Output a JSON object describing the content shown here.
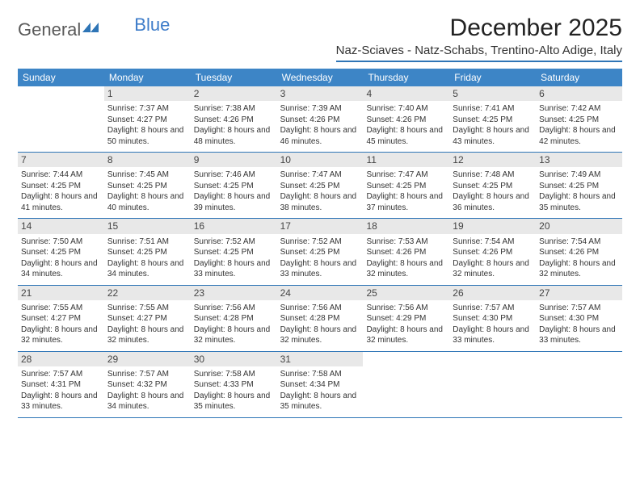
{
  "logo": {
    "text1": "General",
    "text2": "Blue"
  },
  "title": "December 2025",
  "location": "Naz-Sciaves - Natz-Schabs, Trentino-Alto Adige, Italy",
  "colors": {
    "header_bar": "#3d85c6",
    "divider": "#2e75b6",
    "daynum_bg": "#e8e8e8",
    "logo_blue": "#3d7cc9"
  },
  "weekdays": [
    "Sunday",
    "Monday",
    "Tuesday",
    "Wednesday",
    "Thursday",
    "Friday",
    "Saturday"
  ],
  "weeks": [
    [
      {
        "n": "",
        "empty": true
      },
      {
        "n": "1",
        "sr": "7:37 AM",
        "ss": "4:27 PM",
        "dl": "8 hours and 50 minutes."
      },
      {
        "n": "2",
        "sr": "7:38 AM",
        "ss": "4:26 PM",
        "dl": "8 hours and 48 minutes."
      },
      {
        "n": "3",
        "sr": "7:39 AM",
        "ss": "4:26 PM",
        "dl": "8 hours and 46 minutes."
      },
      {
        "n": "4",
        "sr": "7:40 AM",
        "ss": "4:26 PM",
        "dl": "8 hours and 45 minutes."
      },
      {
        "n": "5",
        "sr": "7:41 AM",
        "ss": "4:25 PM",
        "dl": "8 hours and 43 minutes."
      },
      {
        "n": "6",
        "sr": "7:42 AM",
        "ss": "4:25 PM",
        "dl": "8 hours and 42 minutes."
      }
    ],
    [
      {
        "n": "7",
        "sr": "7:44 AM",
        "ss": "4:25 PM",
        "dl": "8 hours and 41 minutes."
      },
      {
        "n": "8",
        "sr": "7:45 AM",
        "ss": "4:25 PM",
        "dl": "8 hours and 40 minutes."
      },
      {
        "n": "9",
        "sr": "7:46 AM",
        "ss": "4:25 PM",
        "dl": "8 hours and 39 minutes."
      },
      {
        "n": "10",
        "sr": "7:47 AM",
        "ss": "4:25 PM",
        "dl": "8 hours and 38 minutes."
      },
      {
        "n": "11",
        "sr": "7:47 AM",
        "ss": "4:25 PM",
        "dl": "8 hours and 37 minutes."
      },
      {
        "n": "12",
        "sr": "7:48 AM",
        "ss": "4:25 PM",
        "dl": "8 hours and 36 minutes."
      },
      {
        "n": "13",
        "sr": "7:49 AM",
        "ss": "4:25 PM",
        "dl": "8 hours and 35 minutes."
      }
    ],
    [
      {
        "n": "14",
        "sr": "7:50 AM",
        "ss": "4:25 PM",
        "dl": "8 hours and 34 minutes."
      },
      {
        "n": "15",
        "sr": "7:51 AM",
        "ss": "4:25 PM",
        "dl": "8 hours and 34 minutes."
      },
      {
        "n": "16",
        "sr": "7:52 AM",
        "ss": "4:25 PM",
        "dl": "8 hours and 33 minutes."
      },
      {
        "n": "17",
        "sr": "7:52 AM",
        "ss": "4:25 PM",
        "dl": "8 hours and 33 minutes."
      },
      {
        "n": "18",
        "sr": "7:53 AM",
        "ss": "4:26 PM",
        "dl": "8 hours and 32 minutes."
      },
      {
        "n": "19",
        "sr": "7:54 AM",
        "ss": "4:26 PM",
        "dl": "8 hours and 32 minutes."
      },
      {
        "n": "20",
        "sr": "7:54 AM",
        "ss": "4:26 PM",
        "dl": "8 hours and 32 minutes."
      }
    ],
    [
      {
        "n": "21",
        "sr": "7:55 AM",
        "ss": "4:27 PM",
        "dl": "8 hours and 32 minutes."
      },
      {
        "n": "22",
        "sr": "7:55 AM",
        "ss": "4:27 PM",
        "dl": "8 hours and 32 minutes."
      },
      {
        "n": "23",
        "sr": "7:56 AM",
        "ss": "4:28 PM",
        "dl": "8 hours and 32 minutes."
      },
      {
        "n": "24",
        "sr": "7:56 AM",
        "ss": "4:28 PM",
        "dl": "8 hours and 32 minutes."
      },
      {
        "n": "25",
        "sr": "7:56 AM",
        "ss": "4:29 PM",
        "dl": "8 hours and 32 minutes."
      },
      {
        "n": "26",
        "sr": "7:57 AM",
        "ss": "4:30 PM",
        "dl": "8 hours and 33 minutes."
      },
      {
        "n": "27",
        "sr": "7:57 AM",
        "ss": "4:30 PM",
        "dl": "8 hours and 33 minutes."
      }
    ],
    [
      {
        "n": "28",
        "sr": "7:57 AM",
        "ss": "4:31 PM",
        "dl": "8 hours and 33 minutes."
      },
      {
        "n": "29",
        "sr": "7:57 AM",
        "ss": "4:32 PM",
        "dl": "8 hours and 34 minutes."
      },
      {
        "n": "30",
        "sr": "7:58 AM",
        "ss": "4:33 PM",
        "dl": "8 hours and 35 minutes."
      },
      {
        "n": "31",
        "sr": "7:58 AM",
        "ss": "4:34 PM",
        "dl": "8 hours and 35 minutes."
      },
      {
        "n": "",
        "empty": true
      },
      {
        "n": "",
        "empty": true
      },
      {
        "n": "",
        "empty": true
      }
    ]
  ],
  "labels": {
    "sunrise": "Sunrise:",
    "sunset": "Sunset:",
    "daylight": "Daylight:"
  }
}
